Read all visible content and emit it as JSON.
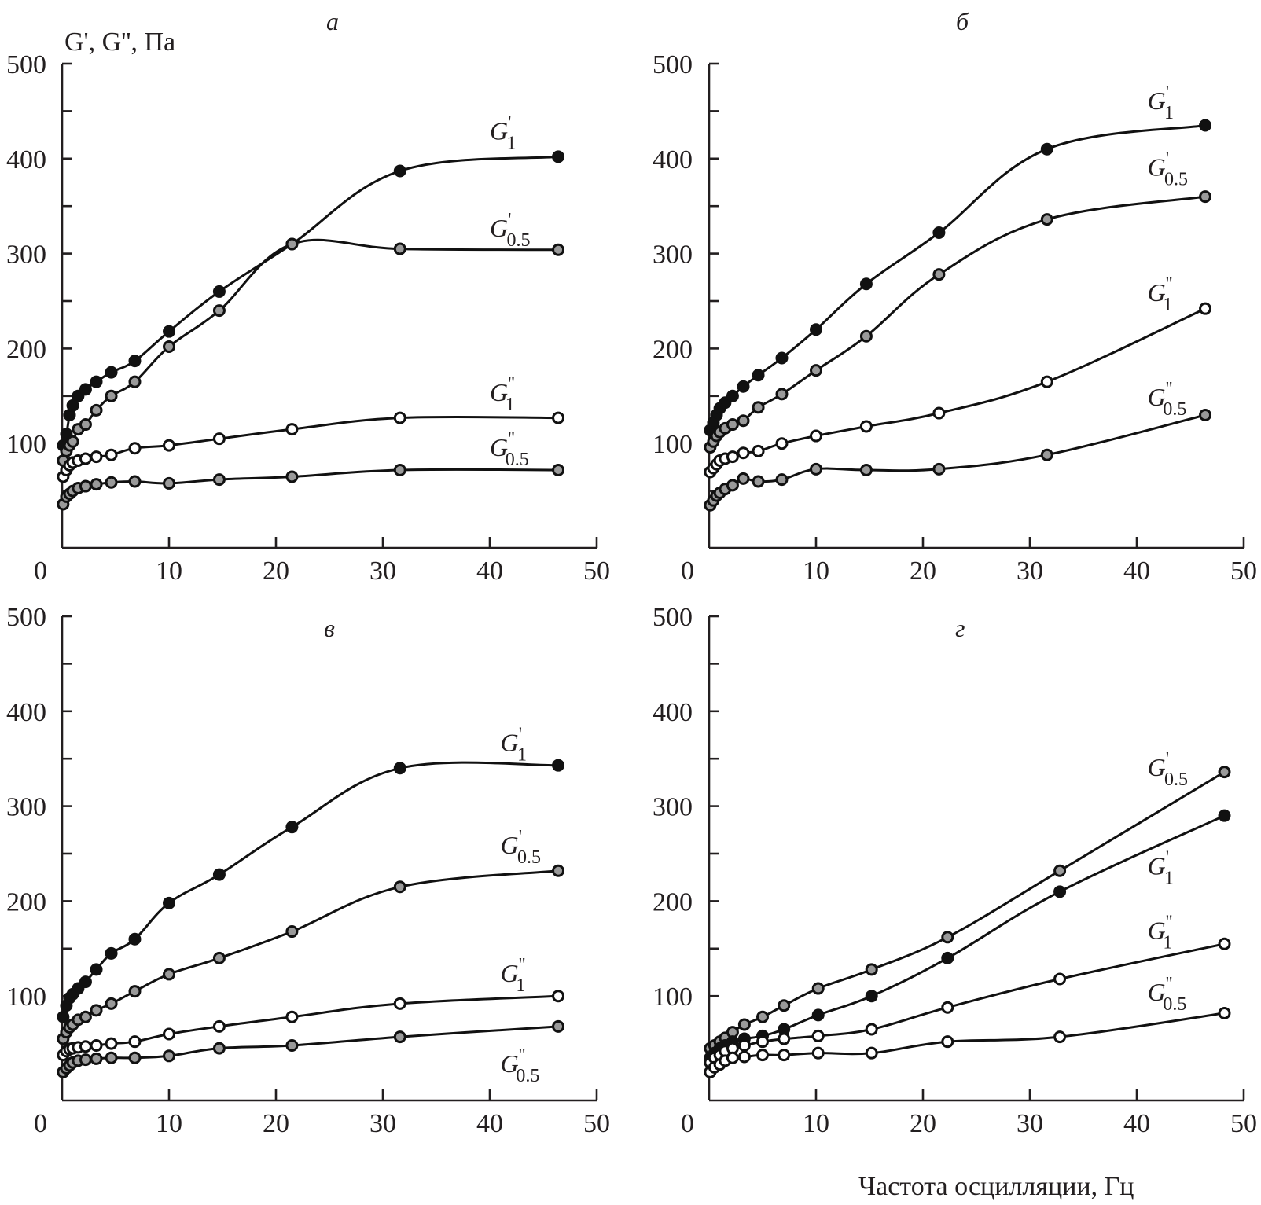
{
  "figure": {
    "y_axis_title": "G', G'', Па",
    "x_axis_title": "Частота осцилляции, Гц"
  },
  "chart_data": [
    {
      "type": "line",
      "panel": "а",
      "title": "а",
      "xlabel": "Частота осцилляции, Гц",
      "ylabel": "G', G'', Па",
      "xlim": [
        0,
        50
      ],
      "ylim": [
        0,
        500
      ],
      "xticks": [
        "0",
        "10",
        "20",
        "30",
        "40",
        "50"
      ],
      "yticks": [
        "100",
        "200",
        "300",
        "400",
        "500"
      ],
      "grid": false,
      "x": [
        0.1,
        0.4,
        0.7,
        1.0,
        1.5,
        2.2,
        3.2,
        4.6,
        6.8,
        10.0,
        14.7,
        21.5,
        31.6,
        46.4
      ],
      "series": [
        {
          "name": "G'1",
          "main": "G",
          "prime": "'",
          "sub": "1",
          "marker": "filled",
          "values": [
            98,
            110,
            130,
            140,
            150,
            157,
            165,
            175,
            187,
            218,
            260,
            310,
            387,
            402
          ],
          "label_pos": [
            40,
            420
          ]
        },
        {
          "name": "G'0.5",
          "main": "G",
          "prime": "'",
          "sub": "0.5",
          "marker": "shaded",
          "values": [
            82,
            92,
            98,
            102,
            115,
            120,
            135,
            150,
            165,
            202,
            240,
            310,
            305,
            304
          ],
          "label_pos": [
            40,
            318
          ]
        },
        {
          "name": "G''1",
          "main": "G",
          "prime": "''",
          "sub": "1",
          "marker": "open",
          "values": [
            65,
            72,
            77,
            80,
            82,
            84,
            86,
            88,
            95,
            98,
            105,
            115,
            127,
            127
          ],
          "label_pos": [
            40,
            145
          ]
        },
        {
          "name": "G''0.5",
          "main": "G",
          "prime": "''",
          "sub": "0.5",
          "marker": "shaded",
          "values": [
            36,
            44,
            47,
            50,
            53,
            55,
            57,
            59,
            60,
            58,
            62,
            65,
            72,
            72
          ],
          "label_pos": [
            40,
            87
          ]
        }
      ]
    },
    {
      "type": "line",
      "panel": "б",
      "title": "б",
      "xlabel": "Частота осцилляции, Гц",
      "ylabel": "G', G'', Па",
      "xlim": [
        0,
        50
      ],
      "ylim": [
        0,
        500
      ],
      "xticks": [
        "0",
        "10",
        "20",
        "30",
        "40",
        "50"
      ],
      "yticks": [
        "100",
        "200",
        "300",
        "400",
        "500"
      ],
      "grid": false,
      "x": [
        0.1,
        0.4,
        0.7,
        1.0,
        1.5,
        2.2,
        3.2,
        4.6,
        6.8,
        10.0,
        14.7,
        21.5,
        31.6,
        46.4
      ],
      "series": [
        {
          "name": "G'1",
          "main": "G",
          "prime": "'",
          "sub": "1",
          "marker": "filled",
          "values": [
            114,
            122,
            130,
            137,
            143,
            150,
            160,
            172,
            190,
            220,
            268,
            322,
            410,
            435
          ],
          "label_pos": [
            41,
            452
          ]
        },
        {
          "name": "G'0.5",
          "main": "G",
          "prime": "'",
          "sub": "0.5",
          "marker": "shaded",
          "values": [
            96,
            102,
            108,
            112,
            116,
            120,
            124,
            138,
            152,
            177,
            213,
            278,
            336,
            360
          ],
          "label_pos": [
            41,
            382
          ]
        },
        {
          "name": "G''1",
          "main": "G",
          "prime": "''",
          "sub": "1",
          "marker": "open",
          "values": [
            70,
            74,
            78,
            82,
            84,
            86,
            90,
            92,
            100,
            108,
            118,
            132,
            165,
            242
          ],
          "label_pos": [
            41,
            250
          ]
        },
        {
          "name": "G''0.5",
          "main": "G",
          "prime": "''",
          "sub": "0.5",
          "marker": "shaded",
          "values": [
            35,
            40,
            45,
            48,
            52,
            56,
            63,
            60,
            62,
            73,
            72,
            73,
            88,
            130
          ],
          "label_pos": [
            41,
            140
          ]
        }
      ]
    },
    {
      "type": "line",
      "panel": "в",
      "title": "в",
      "xlabel": "Частота осцилляции, Гц",
      "ylabel": "G', G'', Па",
      "xlim": [
        0,
        50
      ],
      "ylim": [
        0,
        500
      ],
      "xticks": [
        "0",
        "10",
        "20",
        "30",
        "40",
        "50"
      ],
      "yticks": [
        "100",
        "200",
        "300",
        "400",
        "500"
      ],
      "grid": false,
      "x": [
        0.1,
        0.4,
        0.7,
        1.0,
        1.5,
        2.2,
        3.2,
        4.6,
        6.8,
        10.0,
        14.7,
        21.5,
        31.6,
        46.4
      ],
      "series": [
        {
          "name": "G'1",
          "main": "G",
          "prime": "'",
          "sub": "1",
          "marker": "filled",
          "values": [
            78,
            90,
            98,
            102,
            108,
            115,
            128,
            145,
            160,
            198,
            228,
            278,
            340,
            343
          ],
          "label_pos": [
            41,
            358
          ]
        },
        {
          "name": "G'0.5",
          "main": "G",
          "prime": "'",
          "sub": "0.5",
          "marker": "shaded",
          "values": [
            55,
            62,
            67,
            70,
            75,
            78,
            85,
            92,
            105,
            123,
            140,
            168,
            215,
            232
          ],
          "label_pos": [
            41,
            250
          ]
        },
        {
          "name": "G''1",
          "main": "G",
          "prime": "''",
          "sub": "1",
          "marker": "open",
          "values": [
            38,
            42,
            44,
            45,
            46,
            47,
            48,
            50,
            52,
            60,
            68,
            78,
            92,
            100
          ],
          "label_pos": [
            41,
            115
          ]
        },
        {
          "name": "G''0.5",
          "main": "G",
          "prime": "''",
          "sub": "0.5",
          "marker": "shaded",
          "values": [
            20,
            24,
            27,
            30,
            32,
            33,
            34,
            35,
            35,
            37,
            45,
            48,
            57,
            68
          ],
          "label_pos": [
            41,
            20
          ]
        }
      ]
    },
    {
      "type": "line",
      "panel": "г",
      "title": "г",
      "xlabel": "Частота осцилляции, Гц",
      "ylabel": "G', G'', Па",
      "xlim": [
        0,
        50
      ],
      "ylim": [
        0,
        500
      ],
      "xticks": [
        "0",
        "10",
        "20",
        "30",
        "40",
        "50"
      ],
      "yticks": [
        "100",
        "200",
        "300",
        "400",
        "500"
      ],
      "grid": false,
      "x": [
        0.1,
        0.5,
        1.0,
        1.5,
        2.2,
        3.3,
        5.0,
        7.0,
        10.2,
        15.2,
        22.3,
        32.8,
        48.2
      ],
      "series": [
        {
          "name": "G'0.5",
          "main": "G",
          "prime": "'",
          "sub": "0.5",
          "marker": "shaded",
          "values": [
            45,
            48,
            52,
            56,
            62,
            70,
            78,
            90,
            108,
            128,
            162,
            232,
            336
          ],
          "label_pos": [
            41,
            332
          ]
        },
        {
          "name": "G'1",
          "main": "G",
          "prime": "'",
          "sub": "1",
          "marker": "filled",
          "values": [
            35,
            40,
            45,
            48,
            52,
            55,
            58,
            65,
            80,
            100,
            140,
            210,
            290
          ],
          "label_pos": [
            41,
            228
          ]
        },
        {
          "name": "G''1",
          "main": "G",
          "prime": "''",
          "sub": "1",
          "marker": "open",
          "values": [
            30,
            35,
            38,
            42,
            45,
            48,
            52,
            55,
            58,
            65,
            88,
            118,
            155
          ],
          "label_pos": [
            41,
            160
          ]
        },
        {
          "name": "G''0.5",
          "main": "G",
          "prime": "''",
          "sub": "0.5",
          "marker": "open",
          "values": [
            20,
            25,
            28,
            32,
            35,
            36,
            38,
            38,
            40,
            40,
            52,
            57,
            82
          ],
          "label_pos": [
            41,
            95
          ]
        }
      ]
    }
  ]
}
